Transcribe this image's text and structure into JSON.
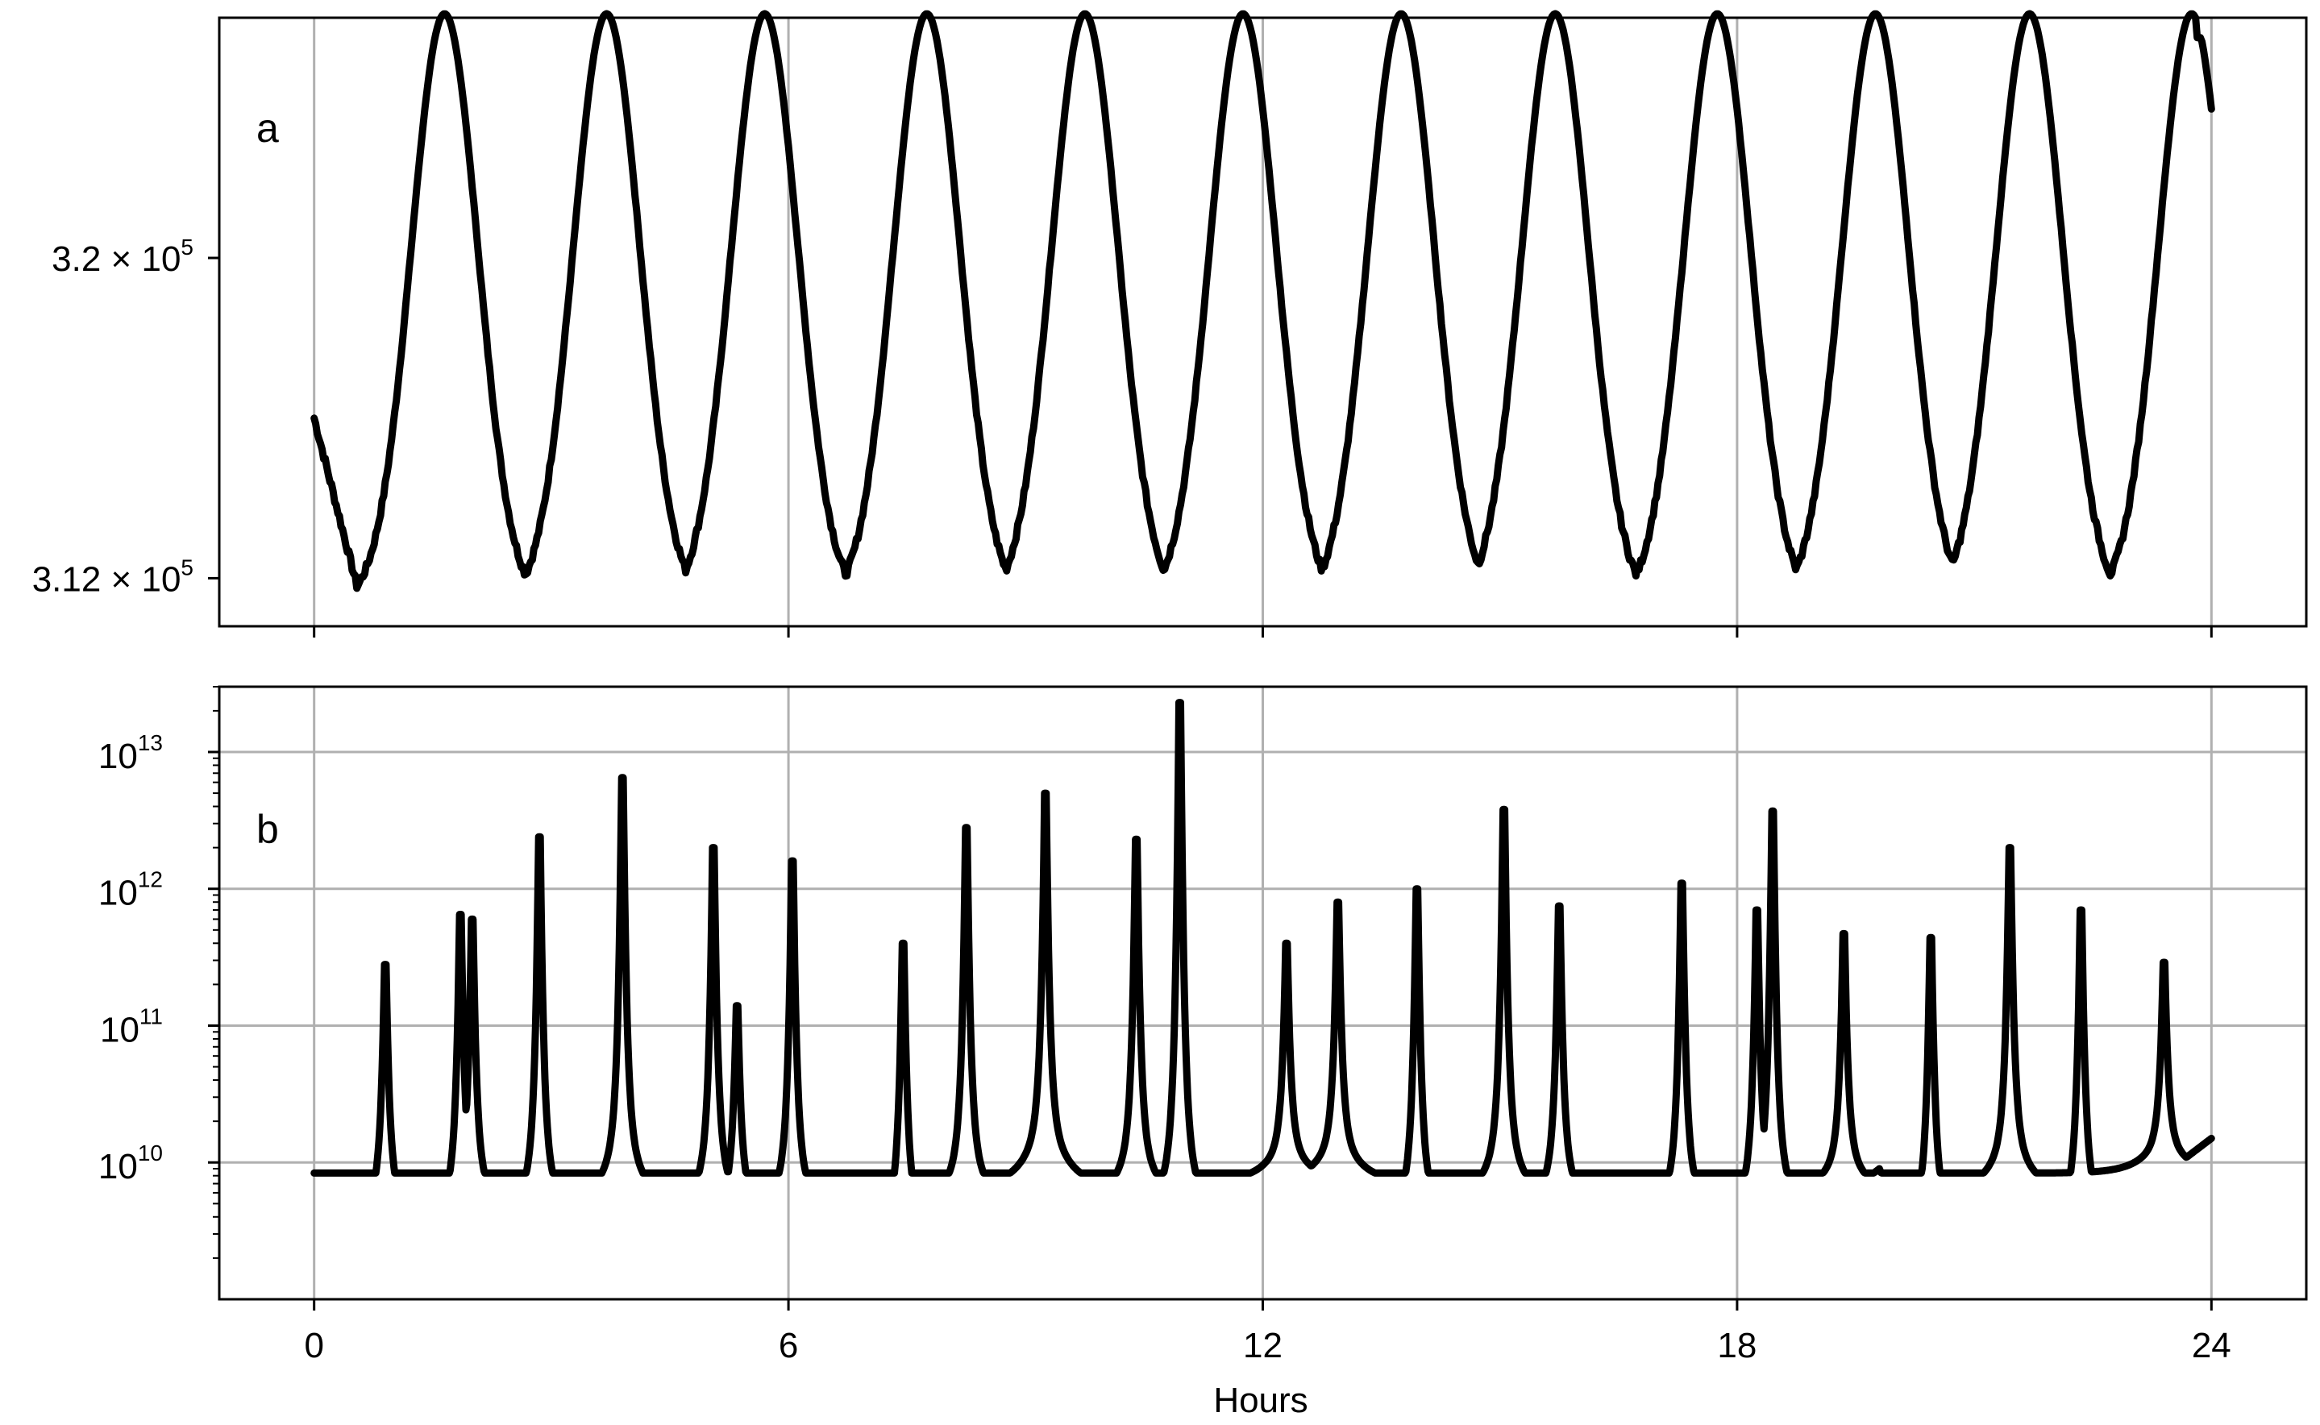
{
  "chart_data": [
    {
      "type": "line",
      "panel_label": "a",
      "title": "",
      "xlabel": "",
      "ylabel": "",
      "xlim": [
        -1.2,
        25.2
      ],
      "ylim": [
        310800,
        326000
      ],
      "x_ticks": [
        0,
        6,
        12,
        18,
        24
      ],
      "x_tick_labels_shown": false,
      "y_ticks": [
        {
          "value": 320000,
          "mantissa": "3.2",
          "exponent": "5"
        },
        {
          "value": 312000,
          "mantissa": "3.12",
          "exponent": "5"
        }
      ],
      "grid": true,
      "color": "#000000",
      "series": [
        {
          "name": "",
          "description": "Periodic oscillation with ~2.2 h period; troughs near 3.1134e5, peaks near 3.2625e5",
          "x": [
            0,
            0.3,
            0.8,
            1.2,
            1.7,
            2.3,
            2.6,
            3.1,
            3.5,
            4.0,
            4.5,
            4.9,
            5.2,
            5.6,
            6.1,
            6.6,
            7.0,
            7.3,
            7.7,
            8.2,
            8.7,
            9.1,
            9.5,
            9.9,
            10.3,
            10.8,
            11.2,
            11.7,
            12.2,
            12.6,
            13.0,
            13.4,
            13.9,
            14.3,
            14.8,
            15.2,
            15.6,
            16.0,
            16.5,
            17.0,
            17.4,
            17.8,
            18.2,
            18.7,
            19.1,
            19.5,
            19.9,
            20.3,
            20.8,
            21.2,
            21.6,
            22.0,
            22.5,
            22.9,
            23.3,
            23.8,
            24.0
          ],
          "y": [
            316000,
            311900,
            311400,
            311700,
            326100,
            311100,
            311100,
            311400,
            326000,
            311200,
            311100,
            311500,
            326000,
            311200,
            311300,
            311400,
            312000,
            326000,
            311300,
            311200,
            311300,
            326100,
            311200,
            311200,
            311300,
            326100,
            311200,
            311300,
            311200,
            311400,
            326000,
            311300,
            311200,
            311200,
            311300,
            311400,
            326000,
            311200,
            311200,
            311300,
            325900,
            311200,
            311000,
            311100,
            311200,
            326000,
            311200,
            311200,
            311300,
            326000,
            311300,
            311300,
            311300,
            311500,
            325800,
            311400,
            325500
          ]
        }
      ]
    },
    {
      "type": "line",
      "panel_label": "b",
      "title": "",
      "xlabel": "Hours",
      "ylabel": "",
      "xlim": [
        -1.2,
        25.2
      ],
      "ylim": [
        1000000000.0,
        30000000000000.0
      ],
      "y_scale": "log",
      "x_ticks": [
        0,
        6,
        12,
        18,
        24
      ],
      "x_tick_labels": [
        "0",
        "6",
        "12",
        "18",
        "24"
      ],
      "y_ticks": [
        {
          "value": 10000000000.0,
          "mantissa": "10",
          "exponent": "10"
        },
        {
          "value": 100000000000.0,
          "mantissa": "10",
          "exponent": "11"
        },
        {
          "value": 1000000000000.0,
          "mantissa": "10",
          "exponent": "12"
        },
        {
          "value": 10000000000000.0,
          "mantissa": "10",
          "exponent": "13"
        }
      ],
      "grid": true,
      "color": "#000000",
      "series": [
        {
          "name": "",
          "description": "Spiky log-scale signal; baseline ~3e9 to 8e9 with sharp peaks",
          "baseline": [
            [
              0,
              7000000000.0
            ],
            [
              0.3,
              3500000000.0
            ],
            [
              0.6,
              3000000000.0
            ],
            [
              0.9,
              3300000000.0
            ],
            [
              1.2,
              3000000000.0
            ],
            [
              1.5,
              2400000000.0
            ],
            [
              1.8,
              3000000000.0
            ],
            [
              2.2,
              5000000000.0
            ],
            [
              2.5,
              5200000000.0
            ],
            [
              2.8,
              3500000000.0
            ],
            [
              3.1,
              2600000000.0
            ],
            [
              3.5,
              2600000000.0
            ],
            [
              3.8,
              4500000000.0
            ],
            [
              4.3,
              5000000000.0
            ],
            [
              4.8,
              4500000000.0
            ],
            [
              5.2,
              3500000000.0
            ],
            [
              5.6,
              4000000000.0
            ],
            [
              6.0,
              3500000000.0
            ],
            [
              6.4,
              4500000000.0
            ],
            [
              6.8,
              4500000000.0
            ],
            [
              7.1,
              3200000000.0
            ],
            [
              7.4,
              2500000000.0
            ],
            [
              7.8,
              3500000000.0
            ],
            [
              8.1,
              4500000000.0
            ],
            [
              8.5,
              4000000000.0
            ],
            [
              8.9,
              5500000000.0
            ],
            [
              9.4,
              7000000000.0
            ],
            [
              9.8,
              3500000000.0
            ],
            [
              10.2,
              6000000000.0
            ],
            [
              10.6,
              4000000000.0
            ],
            [
              11.0,
              3000000000.0
            ],
            [
              11.4,
              2700000000.0
            ],
            [
              11.8,
              3000000000.0
            ],
            [
              12.2,
              7000000000.0
            ],
            [
              12.6,
              8000000000.0
            ],
            [
              13.0,
              7000000000.0
            ],
            [
              13.4,
              3000000000.0
            ],
            [
              13.8,
              3000000000.0
            ],
            [
              14.2,
              3500000000.0
            ],
            [
              14.6,
              4500000000.0
            ],
            [
              15.0,
              5000000000.0
            ],
            [
              15.4,
              4500000000.0
            ],
            [
              15.8,
              4000000000.0
            ],
            [
              16.2,
              3000000000.0
            ],
            [
              16.6,
              3500000000.0
            ],
            [
              17.0,
              3500000000.0
            ],
            [
              17.4,
              3500000000.0
            ],
            [
              17.8,
              3800000000.0
            ],
            [
              18.2,
              3500000000.0
            ],
            [
              18.6,
              3500000000.0
            ],
            [
              19.0,
              5000000000.0
            ],
            [
              19.4,
              6000000000.0
            ],
            [
              19.8,
              9000000000.0
            ],
            [
              20.2,
              2400000000.0
            ],
            [
              20.6,
              3000000000.0
            ],
            [
              21.0,
              5000000000.0
            ],
            [
              21.5,
              6000000000.0
            ],
            [
              21.9,
              4000000000.0
            ],
            [
              22.4,
              3000000000.0
            ],
            [
              22.8,
              3000000000.0
            ],
            [
              23.2,
              7000000000.0
            ],
            [
              23.6,
              10000000000.0
            ],
            [
              24.0,
              15000000000.0
            ]
          ],
          "peaks": [
            [
              0.9,
              280000000000.0
            ],
            [
              1.85,
              650000000000.0
            ],
            [
              2.0,
              600000000000.0
            ],
            [
              2.85,
              2400000000000.0
            ],
            [
              3.9,
              6500000000000.0
            ],
            [
              5.05,
              2000000000000.0
            ],
            [
              5.35,
              140000000000.0
            ],
            [
              6.05,
              1600000000000.0
            ],
            [
              7.45,
              400000000000.0
            ],
            [
              8.25,
              2800000000000.0
            ],
            [
              9.25,
              5000000000000.0
            ],
            [
              10.4,
              2300000000000.0
            ],
            [
              10.95,
              23000000000000.0
            ],
            [
              12.3,
              400000000000.0
            ],
            [
              12.95,
              800000000000.0
            ],
            [
              13.95,
              1000000000000.0
            ],
            [
              15.05,
              3800000000000.0
            ],
            [
              15.75,
              750000000000.0
            ],
            [
              17.3,
              1100000000000.0
            ],
            [
              18.25,
              700000000000.0
            ],
            [
              18.45,
              3700000000000.0
            ],
            [
              19.35,
              470000000000.0
            ],
            [
              20.45,
              440000000000.0
            ],
            [
              21.45,
              2000000000000.0
            ],
            [
              22.35,
              700000000000.0
            ],
            [
              23.4,
              290000000000.0
            ]
          ]
        }
      ]
    }
  ]
}
